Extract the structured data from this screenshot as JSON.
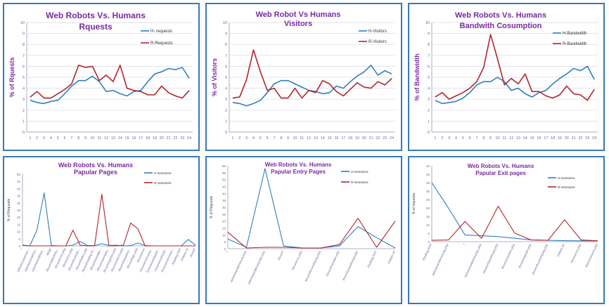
{
  "colors": {
    "h": "#2f7fc1",
    "r": "#b3242b",
    "title": "#7a2aa0",
    "axis": "#6a6a9a",
    "grid": "#d8d8e6",
    "frame": "#3a78b5"
  },
  "chart_data": [
    {
      "id": "c1",
      "type": "line",
      "title": "Web Robots Vs. Humans",
      "subtitle": "Rquests",
      "ylabel": "% of Rquests",
      "xlabel": "",
      "ylim": [
        0,
        10
      ],
      "yticks": [
        0,
        1,
        2,
        3,
        4,
        5,
        6,
        7,
        8,
        9,
        10
      ],
      "categories": [
        "1",
        "2",
        "3",
        "4",
        "5",
        "6",
        "7",
        "8",
        "9",
        "10",
        "11",
        "12",
        "13",
        "14",
        "15",
        "16",
        "17",
        "18",
        "19",
        "20",
        "21",
        "22",
        "23",
        "24"
      ],
      "legend": "right",
      "grid": true,
      "series": [
        {
          "name": "H- requests",
          "color": "#2f7fc1",
          "values": [
            2.9,
            2.7,
            2.6,
            2.8,
            2.9,
            3.5,
            4.2,
            4.7,
            4.7,
            5.1,
            4.6,
            3.7,
            3.8,
            3.5,
            3.3,
            3.7,
            3.8,
            4.6,
            5.3,
            5.5,
            5.8,
            5.7,
            5.9,
            4.9
          ]
        },
        {
          "name": "R-Requests",
          "color": "#b3242b",
          "values": [
            3.2,
            3.7,
            3.1,
            3.1,
            3.5,
            3.9,
            4.4,
            6.1,
            5.9,
            6.0,
            4.7,
            5.2,
            4.6,
            6.1,
            4.0,
            3.8,
            3.7,
            3.4,
            3.4,
            4.2,
            3.6,
            3.3,
            3.1,
            3.8
          ]
        }
      ]
    },
    {
      "id": "c2",
      "type": "line",
      "title": "Web Robot Vs Humans",
      "subtitle": "Visitors",
      "ylabel": "% of Visitors",
      "xlabel": "",
      "ylim": [
        0,
        10
      ],
      "yticks": [
        0,
        1,
        2,
        3,
        4,
        5,
        6,
        7,
        8,
        9,
        10
      ],
      "categories": [
        "1",
        "2",
        "3",
        "4",
        "5",
        "6",
        "7",
        "8",
        "9",
        "10",
        "11",
        "12",
        "13",
        "14",
        "15",
        "16",
        "17",
        "18",
        "19",
        "20",
        "21",
        "22",
        "23",
        "24"
      ],
      "legend": "right",
      "grid": true,
      "series": [
        {
          "name": "H-Visitors",
          "color": "#2f7fc1",
          "values": [
            2.7,
            2.6,
            2.4,
            2.6,
            2.9,
            3.6,
            4.4,
            4.7,
            4.7,
            4.4,
            4.1,
            3.8,
            3.7,
            3.5,
            3.6,
            4.2,
            4.0,
            4.6,
            5.1,
            5.5,
            6.1,
            5.2,
            5.6,
            5.3
          ]
        },
        {
          "name": "R-Visitors",
          "color": "#b3242b",
          "values": [
            3.1,
            3.2,
            4.8,
            7.5,
            5.5,
            3.8,
            4.0,
            3.1,
            3.1,
            4.0,
            3.1,
            3.8,
            3.6,
            4.7,
            4.4,
            3.7,
            3.3,
            3.9,
            4.5,
            4.1,
            4.0,
            4.6,
            4.3,
            4.9
          ]
        }
      ]
    },
    {
      "id": "c3",
      "type": "line",
      "title": "Web Robots Vs. Humans",
      "subtitle": "Bandwith Cosumption",
      "ylabel": "% of Bandwidth",
      "xlabel": "",
      "ylim": [
        0,
        10
      ],
      "yticks": [
        0,
        1,
        2,
        3,
        4,
        5,
        6,
        7,
        8,
        9,
        10
      ],
      "categories": [
        "1",
        "2",
        "3",
        "4",
        "5",
        "6",
        "7",
        "8",
        "9",
        "10",
        "11",
        "12",
        "13",
        "14",
        "15",
        "16",
        "17",
        "18",
        "19",
        "20",
        "21",
        "22",
        "23",
        "24"
      ],
      "legend": "right",
      "grid": true,
      "series": [
        {
          "name": "H-Bandwidth",
          "color": "#2f7fc1",
          "values": [
            2.9,
            2.6,
            2.7,
            2.8,
            3.1,
            3.6,
            4.3,
            4.6,
            4.6,
            5.0,
            4.6,
            3.8,
            4.0,
            3.5,
            3.2,
            3.6,
            3.8,
            4.4,
            4.9,
            5.3,
            5.8,
            5.6,
            6.0,
            4.8
          ]
        },
        {
          "name": "R-Bandwidth",
          "color": "#b3242b",
          "values": [
            3.2,
            3.6,
            3.0,
            3.3,
            3.6,
            4.0,
            4.6,
            5.9,
            8.9,
            6.7,
            4.3,
            4.9,
            4.4,
            5.3,
            3.7,
            3.7,
            3.3,
            3.1,
            3.4,
            4.2,
            3.5,
            3.4,
            2.9,
            3.9
          ]
        }
      ]
    },
    {
      "id": "c4",
      "type": "line",
      "title": "Web Robots Vs. Humans",
      "subtitle": "Papular Pages",
      "ylabel": "% of Requests",
      "xlabel": "",
      "ylim": [
        0,
        50
      ],
      "yticks": [
        0,
        5,
        10,
        15,
        20,
        25,
        30,
        35,
        40,
        45,
        50
      ],
      "categories": [
        "/",
        "/abouts2u/privac...",
        "/ads/www/delive...",
        "/ads/www/delive...",
        "/blog/",
        "/forum/attachme...",
        "/forum/cron.php",
        "/forum/css.php",
        "/forum/forumdis...",
        "/forum/index.php",
        "/forum/loading.ht...",
        "/forum/member...",
        "/forum/newreply...",
        "/forum/register.php",
        "/forum/search.php",
        "/forum/showthre...",
        "/forum/tags.php",
        "/insurance/",
        "/insurance/comp...",
        "/insurance/health...",
        "/insurance/healt...",
        "/insurance/visitor...",
        "/loading.html",
        "/robots.txt",
        "/travel/"
      ],
      "legend": "right",
      "grid": false,
      "series": [
        {
          "name": "H-Sessions",
          "color": "#2f7fc1",
          "values": [
            0.5,
            0,
            11,
            37,
            0.3,
            0,
            0,
            0.5,
            3,
            0.3,
            0.2,
            1.5,
            0.3,
            0.5,
            0,
            0.2,
            2,
            0.3,
            0,
            0,
            0,
            0,
            0,
            4.5,
            0.5
          ]
        },
        {
          "name": "R-Sessions",
          "color": "#b3242b",
          "values": [
            0.5,
            0,
            0,
            0,
            0,
            0,
            0,
            11,
            0.5,
            0,
            0,
            36,
            0,
            0,
            0.5,
            16,
            12,
            0,
            0,
            0,
            0,
            0,
            0,
            0,
            0
          ]
        }
      ]
    },
    {
      "id": "c5",
      "type": "line",
      "title": "Web Robots Vs. Humans",
      "subtitle": "Papular Entry Pages",
      "ylabel": "% of Requests",
      "xlabel": "",
      "ylim": [
        0,
        60
      ],
      "yticks": [
        0,
        5,
        10,
        15,
        20,
        25,
        30,
        35,
        40,
        45,
        50,
        55,
        60
      ],
      "categories": [
        "/",
        "/ads/www/delivery/a.php",
        "/ads/www/delivery/ajs.php",
        "/forum/",
        "/forum/css.php",
        "/forum/forumdisplay.php",
        "/forum/member.php",
        "/forum/showthread.php",
        "/loading.html",
        "/robots.txt"
      ],
      "legend": "right",
      "grid": false,
      "series": [
        {
          "name": "H-Sessions",
          "color": "#2f7fc1",
          "values": [
            7,
            1,
            58,
            2,
            0.5,
            0.5,
            2,
            16,
            8,
            0.5
          ]
        },
        {
          "name": "R-Sessions",
          "color": "#b3242b",
          "values": [
            12,
            0.5,
            1,
            1,
            0.5,
            0.5,
            3,
            22,
            1,
            20
          ]
        }
      ]
    },
    {
      "id": "c6",
      "type": "line",
      "title": "Web Robots Vs. Humans",
      "subtitle": "Papular Exit pages",
      "ylabel": "% of requests",
      "xlabel": "",
      "ylim": [
        0,
        45
      ],
      "yticks": [
        0,
        5,
        10,
        15,
        20,
        25,
        30,
        35,
        40,
        45
      ],
      "categories": [
        "/loading.html",
        "/ads/www/delivery/lg.php",
        "/",
        "/ads/www/delivery/ajs.php",
        "/forum/showthread.php",
        "/forum/member.php",
        "/forum/register.php",
        "/forum/forumdisplay.php",
        "/robots.txt",
        "/forum/css.php",
        "/forum/search.php"
      ],
      "legend": "right",
      "grid": false,
      "series": [
        {
          "name": "H-Sessions",
          "color": "#2f7fc1",
          "values": [
            35,
            20,
            4,
            3.5,
            3,
            2,
            1,
            0.8,
            0.6,
            0.5,
            0.5
          ]
        },
        {
          "name": "R-Sessions",
          "color": "#b3242b",
          "values": [
            0.8,
            1,
            12,
            2,
            21,
            5,
            1,
            0.8,
            13,
            1,
            0.5
          ]
        }
      ]
    }
  ]
}
